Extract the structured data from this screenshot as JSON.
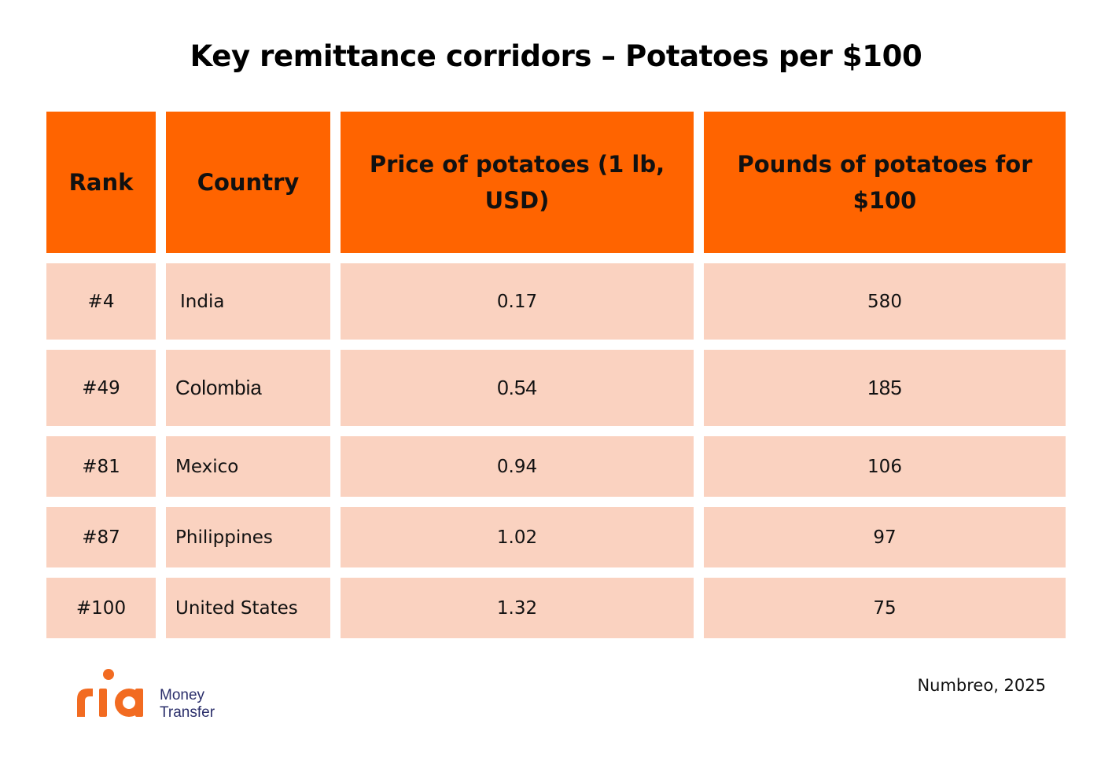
{
  "title": "Key remittance corridors – Potatoes per $100",
  "chart_data": {
    "type": "table",
    "columns": [
      "Rank",
      "Country",
      "Price of potatoes (1 lb, USD)",
      "Pounds of potatoes for $100"
    ],
    "rows": [
      [
        "#4",
        "India",
        "0.17",
        "580"
      ],
      [
        "#49",
        "Colombia",
        "0.54",
        "185"
      ],
      [
        "#81",
        "Mexico",
        "0.94",
        "106"
      ],
      [
        "#87",
        "Philippines",
        "1.02",
        "97"
      ],
      [
        "#100",
        "United States",
        "1.32",
        "75"
      ]
    ]
  },
  "source": "Numbreo, 2025",
  "logo": {
    "wordmark": "ria",
    "line1": "Money",
    "line2": "Transfer"
  },
  "colors": {
    "header": "#ff6400",
    "row": "#fad2c0",
    "brand": "#f26b21"
  }
}
